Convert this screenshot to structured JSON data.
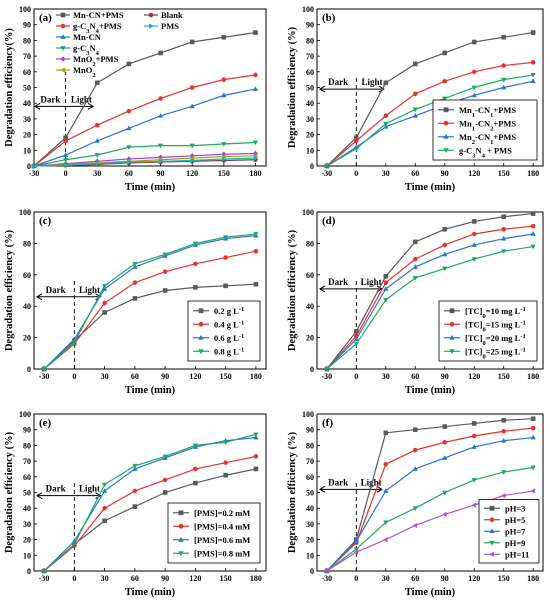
{
  "chart_data": [
    {
      "panel": "(a)",
      "type": "line",
      "xlabel": "Time (min)",
      "ylabel": "Degradation efficiency(%)",
      "xlim": [
        -30,
        190
      ],
      "ylim": [
        0,
        100
      ],
      "xticks": [
        -30,
        0,
        30,
        60,
        90,
        120,
        150,
        180
      ],
      "yticks": [
        0,
        10,
        20,
        30,
        40,
        50,
        60,
        70,
        80,
        90,
        100
      ],
      "x": [
        -30,
        0,
        30,
        60,
        90,
        120,
        150,
        180
      ],
      "dark_label": "Dark",
      "light_label": "Light",
      "legend_position": "top-left",
      "series": [
        {
          "name": "Mn-CN+PMS",
          "color": "#595959",
          "marker": "square",
          "values": [
            0,
            18,
            53,
            65,
            72,
            79,
            82,
            85
          ]
        },
        {
          "name": "g-C3N4+PMS",
          "color": "#e8312f",
          "marker": "circle",
          "values": [
            0,
            16,
            26,
            35,
            43,
            50,
            55,
            58
          ]
        },
        {
          "name": "Mn-CN",
          "color": "#2a74d6",
          "marker": "triangle-up",
          "values": [
            0,
            7,
            16,
            24,
            32,
            38,
            45,
            49
          ]
        },
        {
          "name": "g-C3N4",
          "color": "#1fa864",
          "marker": "triangle-down",
          "values": [
            0,
            4,
            7,
            12,
            13,
            13,
            14,
            15
          ]
        },
        {
          "name": "MnO2+PMS",
          "color": "#a142d6",
          "marker": "diamond",
          "values": [
            0,
            1.5,
            3,
            4.5,
            5.5,
            6.5,
            7.5,
            8
          ]
        },
        {
          "name": "MnO2",
          "color": "#a8a200",
          "marker": "triangle-left",
          "values": [
            0,
            1,
            2,
            3,
            4,
            5,
            6,
            6.5
          ]
        },
        {
          "name": "Blank",
          "color": "#8a3a4a",
          "marker": "circle",
          "values": [
            0,
            0.5,
            1,
            2,
            2.5,
            3,
            3.5,
            4
          ]
        },
        {
          "name": "PMS",
          "color": "#17b4b0",
          "marker": "triangle-right",
          "values": [
            0,
            0.5,
            1.5,
            2.5,
            3,
            3.5,
            4.5,
            5
          ]
        }
      ]
    },
    {
      "panel": "(b)",
      "type": "line",
      "xlabel": "Time (min)",
      "ylabel": "Degradation efficiency (%)",
      "xlim": [
        -40,
        190
      ],
      "ylim": [
        0,
        100
      ],
      "xticks": [
        -30,
        0,
        30,
        60,
        90,
        120,
        150,
        180
      ],
      "yticks": [
        0,
        10,
        20,
        30,
        40,
        50,
        60,
        70,
        80,
        90,
        100
      ],
      "x": [
        -30,
        0,
        30,
        60,
        90,
        120,
        150,
        180
      ],
      "dark_label": "Dark",
      "light_label": "Light",
      "legend_position": "bottom-right",
      "series": [
        {
          "name": "Mn1-CN1+PMS",
          "color": "#595959",
          "marker": "square",
          "values": [
            0,
            18,
            53,
            65,
            72,
            79,
            82,
            85
          ]
        },
        {
          "name": "Mn1-CN2+PMS",
          "color": "#e8312f",
          "marker": "circle",
          "values": [
            0,
            16,
            32,
            46,
            54,
            60,
            64,
            66
          ]
        },
        {
          "name": "Mn2-CN1+PMS",
          "color": "#2a74d6",
          "marker": "triangle-up",
          "values": [
            0,
            12,
            25,
            32,
            39,
            45,
            50,
            54
          ]
        },
        {
          "name": "g-C3N4 + PMS",
          "color": "#1fa864",
          "marker": "triangle-down",
          "values": [
            0,
            11,
            27,
            36,
            43,
            50,
            55,
            58
          ]
        }
      ]
    },
    {
      "panel": "(c)",
      "type": "line",
      "xlabel": "Time (min)",
      "ylabel": "Degradation efficiency  (%)",
      "xlim": [
        -40,
        190
      ],
      "ylim": [
        0,
        100
      ],
      "xticks": [
        -30,
        0,
        30,
        60,
        90,
        120,
        150,
        180
      ],
      "yticks": [
        0,
        20,
        40,
        60,
        80,
        100
      ],
      "x": [
        -30,
        0,
        30,
        60,
        90,
        120,
        150,
        180
      ],
      "dark_label": "Dark",
      "light_label": "Light",
      "legend_position": "bottom-right",
      "series": [
        {
          "name": "0.2 g L-1",
          "color": "#595959",
          "marker": "square",
          "values": [
            0,
            18,
            36,
            45,
            50,
            52,
            53,
            54
          ]
        },
        {
          "name": "0.4 g L-1",
          "color": "#e8312f",
          "marker": "circle",
          "values": [
            0,
            16,
            42,
            55,
            62,
            67,
            71,
            75
          ]
        },
        {
          "name": "0.6 g L-1",
          "color": "#2a74d6",
          "marker": "triangle-up",
          "values": [
            0,
            19,
            51,
            65,
            72,
            79,
            83,
            85
          ]
        },
        {
          "name": "0.8 g L-1",
          "color": "#1fa864",
          "marker": "triangle-down",
          "values": [
            0,
            17,
            53,
            67,
            73,
            80,
            84,
            86
          ]
        }
      ]
    },
    {
      "panel": "(d)",
      "type": "line",
      "xlabel": "Time (min)",
      "ylabel": "Degradation efficiency  (%)",
      "xlim": [
        -40,
        190
      ],
      "ylim": [
        0,
        100
      ],
      "xticks": [
        -30,
        0,
        30,
        60,
        90,
        120,
        150,
        180
      ],
      "yticks": [
        0,
        20,
        40,
        60,
        80,
        100
      ],
      "x": [
        -30,
        0,
        30,
        60,
        90,
        120,
        150,
        180
      ],
      "dark_label": "Dark",
      "light_label": "Light",
      "legend_position": "bottom-right",
      "series": [
        {
          "name": "[TC]0=10 mg L-1",
          "color": "#595959",
          "marker": "square",
          "values": [
            0,
            24,
            59,
            81,
            89,
            94,
            97,
            99
          ]
        },
        {
          "name": "[TC]0=15 mg L-1",
          "color": "#e8312f",
          "marker": "circle",
          "values": [
            0,
            21,
            55,
            70,
            79,
            86,
            89,
            91
          ]
        },
        {
          "name": "[TC]0=20 mg L-1",
          "color": "#2a74d6",
          "marker": "triangle-up",
          "values": [
            0,
            19,
            51,
            65,
            73,
            79,
            83,
            86
          ]
        },
        {
          "name": "[TC]0=25 mg L-1",
          "color": "#1fa864",
          "marker": "triangle-down",
          "values": [
            0,
            16,
            44,
            58,
            64,
            70,
            75,
            78
          ]
        }
      ]
    },
    {
      "panel": "(e)",
      "type": "line",
      "xlabel": "Time (min)",
      "ylabel": "Degradation efficiency  (%)",
      "xlim": [
        -40,
        190
      ],
      "ylim": [
        0,
        100
      ],
      "xticks": [
        -30,
        0,
        30,
        60,
        90,
        120,
        150,
        180
      ],
      "yticks": [
        0,
        10,
        20,
        30,
        40,
        50,
        60,
        70,
        80,
        90,
        100
      ],
      "x": [
        -30,
        0,
        30,
        60,
        90,
        120,
        150,
        180
      ],
      "dark_label": "Dark",
      "light_label": "Light",
      "legend_position": "bottom-right",
      "series": [
        {
          "name": "[PMS]=0.2 mM",
          "color": "#595959",
          "marker": "square",
          "values": [
            0,
            17,
            32,
            41,
            50,
            56,
            61,
            65
          ]
        },
        {
          "name": "[PMS]=0.4 mM",
          "color": "#e8312f",
          "marker": "circle",
          "values": [
            0,
            16,
            40,
            51,
            58,
            65,
            69,
            73
          ]
        },
        {
          "name": "[PMS]=0.6 mM",
          "color": "#2a74d6",
          "marker": "triangle-up",
          "values": [
            0,
            19,
            51,
            65,
            72,
            79,
            83,
            85
          ]
        },
        {
          "name": "[PMS]=0.8 mM",
          "color": "#1fa864",
          "marker": "triangle-down",
          "values": [
            0,
            17,
            55,
            67,
            73,
            80,
            82,
            87
          ]
        }
      ]
    },
    {
      "panel": "(f)",
      "type": "line",
      "xlabel": "Time (min)",
      "ylabel": "Degradation efficiency (%)",
      "xlim": [
        -40,
        190
      ],
      "ylim": [
        0,
        100
      ],
      "xticks": [
        -30,
        0,
        30,
        60,
        90,
        120,
        150,
        180
      ],
      "yticks": [
        0,
        10,
        20,
        30,
        40,
        50,
        60,
        70,
        80,
        90,
        100
      ],
      "x": [
        -30,
        0,
        30,
        60,
        90,
        120,
        150,
        180
      ],
      "dark_label": "Dark",
      "light_label": "Light",
      "legend_position": "bottom-right",
      "series": [
        {
          "name": "pH=3",
          "color": "#595959",
          "marker": "square",
          "values": [
            0,
            20,
            88,
            90,
            92,
            94,
            96,
            97
          ]
        },
        {
          "name": "pH=5",
          "color": "#e8312f",
          "marker": "circle",
          "values": [
            0,
            18,
            68,
            77,
            82,
            86,
            89,
            91
          ]
        },
        {
          "name": "pH=7",
          "color": "#2a74d6",
          "marker": "triangle-up",
          "values": [
            0,
            19,
            51,
            65,
            72,
            79,
            83,
            85
          ]
        },
        {
          "name": "pH=9",
          "color": "#1fa864",
          "marker": "triangle-down",
          "values": [
            0,
            14,
            31,
            40,
            50,
            58,
            63,
            66
          ]
        },
        {
          "name": "pH=11",
          "color": "#b254d6",
          "marker": "triangle-left",
          "values": [
            0,
            12,
            20,
            29,
            36,
            42,
            48,
            51
          ]
        }
      ]
    }
  ]
}
